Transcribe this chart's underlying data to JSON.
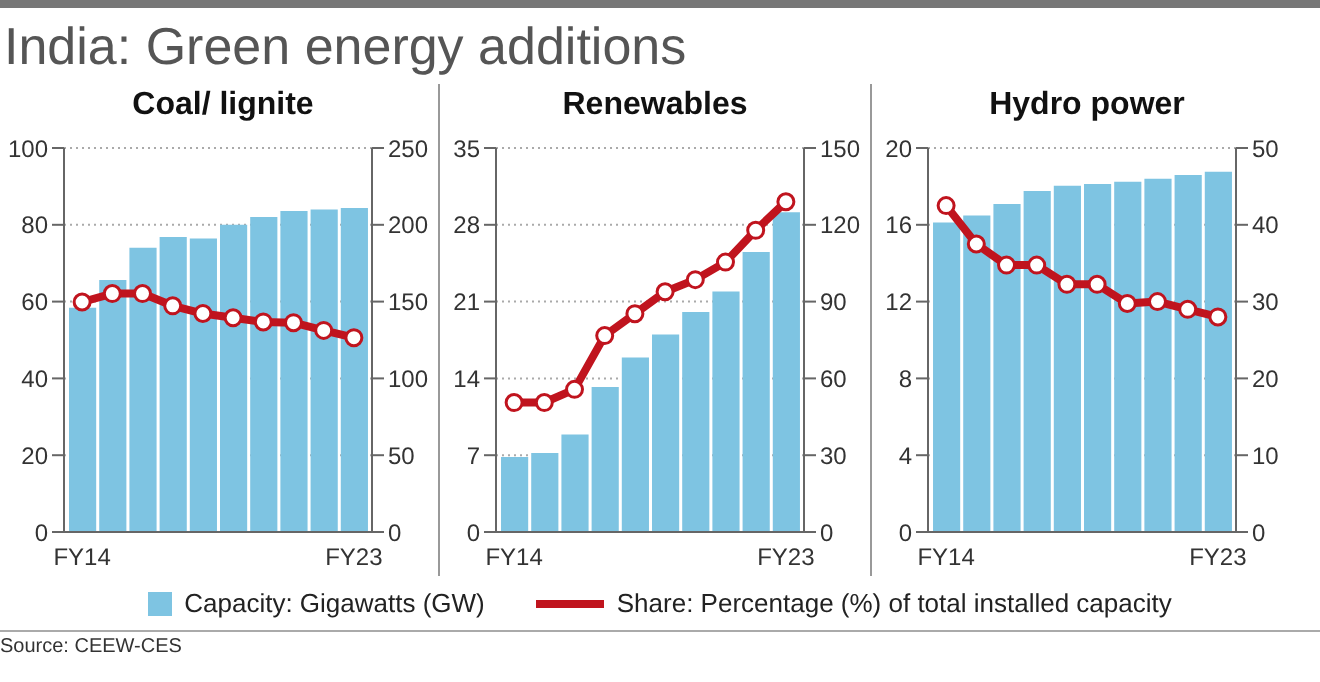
{
  "chart_data": [
    {
      "type": "bar",
      "title": "India: Green energy additions",
      "subtitle": "Coal/ lignite",
      "categories": [
        "FY14",
        null,
        null,
        null,
        null,
        null,
        null,
        null,
        null,
        "FY23"
      ],
      "series": [
        {
          "name": "Capacity: Gigawatts (GW)",
          "color": "#7ec4e2",
          "axis": "y2",
          "values": [
            146,
            164,
            185,
            192,
            191,
            200,
            205,
            209,
            210,
            211
          ]
        },
        {
          "type": "line",
          "name": "Share: Percentage (%) of total installed capacity",
          "color": "#c0141e",
          "values": [
            59.9,
            62.1,
            62.1,
            58.9,
            56.9,
            55.8,
            54.7,
            54.5,
            52.5,
            50.6
          ]
        }
      ],
      "ylim": [
        0,
        100
      ],
      "yticks": [
        0,
        20,
        40,
        60,
        80,
        100
      ],
      "y2lim": [
        0,
        250
      ],
      "y2ticks": [
        0,
        50,
        100,
        150,
        200,
        250
      ],
      "grid": "y",
      "marker": "circle",
      "legend": "bottom",
      "annotations": [
        "Source: CEEW-CES"
      ]
    },
    {
      "type": "bar",
      "subtitle": "Renewables",
      "categories": [
        "FY14",
        null,
        null,
        null,
        null,
        null,
        null,
        null,
        null,
        "FY23"
      ],
      "series": [
        {
          "color": "#7ec4e2",
          "axis": "y2",
          "values": [
            29.3,
            30.9,
            38.1,
            56.6,
            68.2,
            77.1,
            85.9,
            93.9,
            109.4,
            124.9
          ]
        },
        {
          "type": "line",
          "color": "#c0141e",
          "values": [
            11.8,
            11.8,
            13.0,
            17.9,
            19.9,
            21.9,
            23.0,
            24.6,
            27.5,
            30.1
          ]
        }
      ],
      "ylim": [
        0,
        35
      ],
      "yticks": [
        0,
        7,
        14,
        21,
        28,
        35
      ],
      "y2lim": [
        0,
        150
      ],
      "y2ticks": [
        0,
        30,
        60,
        90,
        120,
        150
      ],
      "grid": "y",
      "marker": "circle"
    },
    {
      "type": "bar",
      "subtitle": "Hydro power",
      "categories": [
        "FY14",
        null,
        null,
        null,
        null,
        null,
        null,
        null,
        null,
        "FY23"
      ],
      "series": [
        {
          "color": "#7ec4e2",
          "axis": "y2",
          "values": [
            40.3,
            41.2,
            42.7,
            44.4,
            45.1,
            45.3,
            45.6,
            46.0,
            46.5,
            46.9
          ]
        },
        {
          "type": "line",
          "color": "#c0141e",
          "values": [
            17.0,
            15.0,
            13.9,
            13.9,
            12.9,
            12.9,
            11.9,
            12.0,
            11.6,
            11.2
          ]
        }
      ],
      "ylim": [
        0,
        20
      ],
      "yticks": [
        0,
        4,
        8,
        12,
        16,
        20
      ],
      "y2lim": [
        0,
        50
      ],
      "y2ticks": [
        0,
        10,
        20,
        30,
        40,
        50
      ],
      "grid": "y",
      "marker": "circle"
    }
  ]
}
